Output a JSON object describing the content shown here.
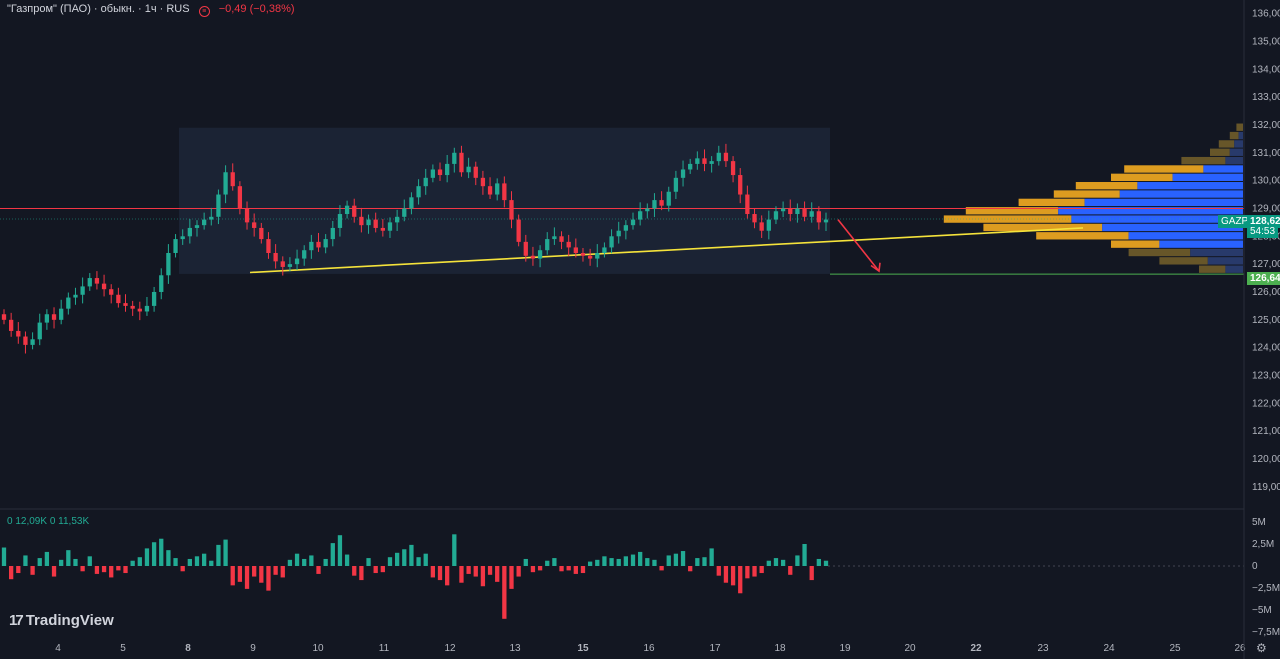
{
  "header": {
    "symbol": "\"Газпром\" (ПАО) · обыкн. · 1ч · RUS",
    "change": "−0,49 (−0,38%)"
  },
  "volume_legend": {
    "a": "0",
    "b": "12,09K",
    "c": "0",
    "d": "11,53K"
  },
  "branding": {
    "logo": "TradingView"
  },
  "price_tag": {
    "ticker": "GAZP",
    "price": "128,62",
    "countdown": "54:53"
  },
  "target_tag": {
    "price": "126,64"
  },
  "colors": {
    "bull": "#22ab94",
    "bear": "#f23645",
    "bg": "#131722",
    "trend": "#f5e33b",
    "resistance": "#f23645",
    "box": "#1f2a3c",
    "vp_up": "#2962ff",
    "vp_down": "#e8a321"
  },
  "chart_data": {
    "type": "candlestick",
    "y_ticks": [
      "136,00",
      "135,00",
      "134,00",
      "133,00",
      "132,00",
      "131,00",
      "130,00",
      "129,00",
      "128,00",
      "127,00",
      "126,00",
      "125,00",
      "124,00",
      "123,00",
      "122,00",
      "121,00",
      "120,00",
      "119,00"
    ],
    "y_tick_values": [
      136,
      135,
      134,
      133,
      132,
      131,
      130,
      129,
      128,
      127,
      126,
      125,
      124,
      123,
      122,
      121,
      120,
      119
    ],
    "x_ticks": [
      "4",
      "5",
      "8",
      "9",
      "10",
      "11",
      "12",
      "13",
      "15",
      "16",
      "17",
      "18",
      "19",
      "20",
      "22",
      "23",
      "24",
      "25",
      "26"
    ],
    "volume_ticks": [
      "5M",
      "2,5M",
      "0",
      "−2,5M",
      "−5M",
      "−7,5M"
    ],
    "ylim": [
      118.6,
      136.2
    ],
    "last_price": 128.62,
    "resistance": 129.0,
    "target": 126.64,
    "trendline": [
      {
        "day": "9",
        "price": 126.7
      },
      {
        "day": "23",
        "price": 128.3
      }
    ],
    "range_box": {
      "from": "8",
      "to": "18",
      "high": 131.9,
      "low": 126.65
    },
    "closes": [
      125.0,
      124.6,
      124.4,
      124.1,
      124.3,
      124.9,
      125.2,
      125.0,
      125.4,
      125.8,
      125.9,
      126.2,
      126.5,
      126.3,
      126.1,
      125.9,
      125.6,
      125.5,
      125.4,
      125.3,
      125.5,
      126.0,
      126.6,
      127.4,
      127.9,
      128.0,
      128.3,
      128.4,
      128.6,
      128.7,
      129.5,
      130.3,
      129.8,
      129.0,
      128.5,
      128.3,
      127.9,
      127.4,
      127.1,
      126.9,
      127.0,
      127.2,
      127.5,
      127.8,
      127.6,
      127.9,
      128.3,
      128.8,
      129.1,
      128.7,
      128.4,
      128.6,
      128.3,
      128.2,
      128.5,
      128.7,
      129.0,
      129.4,
      129.8,
      130.1,
      130.4,
      130.2,
      130.6,
      131.0,
      130.3,
      130.5,
      130.1,
      129.8,
      129.5,
      129.9,
      129.3,
      128.6,
      127.8,
      127.3,
      127.2,
      127.5,
      127.9,
      128.0,
      127.8,
      127.6,
      127.4,
      127.3,
      127.2,
      127.4,
      127.6,
      128.0,
      128.2,
      128.4,
      128.6,
      128.9,
      129.0,
      129.3,
      129.1,
      129.6,
      130.1,
      130.4,
      130.6,
      130.8,
      130.6,
      130.7,
      131.0,
      130.7,
      130.2,
      129.5,
      128.8,
      128.5,
      128.2,
      128.6,
      128.9,
      129.0,
      128.8,
      129.0,
      128.7,
      128.9,
      128.5,
      128.6
    ],
    "volumes": [
      2.1,
      -1.5,
      -0.8,
      1.2,
      -1.0,
      0.9,
      1.6,
      -1.2,
      0.7,
      1.8,
      0.8,
      -0.6,
      1.1,
      -0.9,
      -0.7,
      -1.3,
      -0.5,
      -0.8,
      0.6,
      1.0,
      2.0,
      2.7,
      3.1,
      1.8,
      0.9,
      -0.6,
      0.8,
      1.1,
      1.4,
      0.6,
      2.4,
      3.0,
      -2.2,
      -1.8,
      -2.6,
      -1.2,
      -1.9,
      -2.8,
      -1.0,
      -1.3,
      0.7,
      1.4,
      0.8,
      1.2,
      -0.9,
      0.8,
      2.6,
      3.5,
      1.3,
      -1.1,
      -1.6,
      0.9,
      -0.8,
      -0.7,
      1.0,
      1.5,
      1.9,
      2.4,
      1.0,
      1.4,
      -1.3,
      -1.6,
      -2.2,
      3.6,
      -1.9,
      -0.9,
      -1.2,
      -2.3,
      -1.0,
      -1.8,
      -6.0,
      -2.6,
      -1.2,
      0.8,
      -0.7,
      -0.5,
      0.6,
      0.9,
      -0.6,
      -0.5,
      -0.9,
      -0.8,
      0.5,
      0.7,
      1.1,
      0.9,
      0.8,
      1.1,
      1.3,
      1.6,
      0.9,
      0.7,
      -0.5,
      1.2,
      1.4,
      1.7,
      -0.6,
      0.9,
      1.0,
      2.0,
      -1.1,
      -1.9,
      -2.2,
      -3.1,
      -1.4,
      -1.2,
      -0.8,
      0.6,
      0.9,
      0.7,
      -1.0,
      1.2,
      2.5,
      -1.6,
      0.8,
      0.6
    ]
  }
}
